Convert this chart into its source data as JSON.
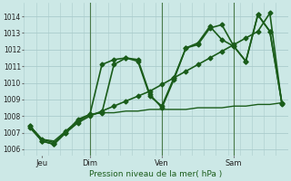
{
  "background_color": "#cce8e6",
  "grid_color": "#aacccc",
  "line_color": "#1a5c1a",
  "title": "Pression niveau de la mer( hPa )",
  "ylabel_values": [
    1006,
    1007,
    1008,
    1009,
    1010,
    1011,
    1012,
    1013,
    1014
  ],
  "ylim": [
    1005.6,
    1014.8
  ],
  "xlim": [
    -0.5,
    21.5
  ],
  "xtick_positions": [
    1,
    5,
    11,
    17
  ],
  "xtick_labels": [
    "Jeu",
    "Dim",
    "Ven",
    "Sam"
  ],
  "vlines": [
    5,
    11,
    17
  ],
  "series": [
    {
      "x": [
        0,
        1,
        2,
        3,
        4,
        5,
        6,
        7,
        8,
        9,
        10,
        11,
        12,
        13,
        14,
        15,
        16,
        17,
        18,
        19,
        20,
        21
      ],
      "y": [
        1007.4,
        1006.6,
        1006.4,
        1007.0,
        1007.6,
        1008.0,
        1008.3,
        1008.6,
        1008.9,
        1009.2,
        1009.5,
        1009.9,
        1010.3,
        1010.7,
        1011.1,
        1011.5,
        1011.9,
        1012.3,
        1012.7,
        1013.1,
        1014.2,
        1008.7
      ],
      "marker": "D",
      "markersize": 2.5,
      "linewidth": 1.2
    },
    {
      "x": [
        0,
        1,
        2,
        3,
        4,
        5,
        6,
        7,
        8,
        9,
        10,
        11,
        12,
        13,
        14,
        15,
        16,
        17,
        18,
        19,
        20,
        21
      ],
      "y": [
        1007.3,
        1006.5,
        1006.3,
        1007.1,
        1007.7,
        1008.1,
        1011.1,
        1011.4,
        1011.5,
        1011.3,
        1009.2,
        1008.6,
        1010.3,
        1012.1,
        1012.4,
        1013.4,
        1012.6,
        1012.2,
        1011.3,
        1014.1,
        1013.1,
        1008.8
      ],
      "marker": "D",
      "markersize": 2.5,
      "linewidth": 1.2
    },
    {
      "x": [
        0,
        1,
        2,
        3,
        4,
        5,
        6,
        7,
        8,
        9,
        10,
        11,
        12,
        13,
        14,
        15,
        16,
        17,
        18,
        19,
        20,
        21
      ],
      "y": [
        1007.4,
        1006.5,
        1006.3,
        1007.0,
        1007.8,
        1008.1,
        1008.2,
        1011.1,
        1011.5,
        1011.4,
        1009.3,
        1008.5,
        1010.2,
        1012.1,
        1012.3,
        1013.3,
        1013.5,
        1012.2,
        1011.3,
        1014.1,
        1013.1,
        1008.8
      ],
      "marker": "D",
      "markersize": 2.5,
      "linewidth": 1.2
    },
    {
      "x": [
        0,
        1,
        2,
        3,
        4,
        5,
        6,
        7,
        8,
        9,
        10,
        11,
        12,
        13,
        14,
        15,
        16,
        17,
        18,
        19,
        20,
        21
      ],
      "y": [
        1007.4,
        1006.6,
        1006.5,
        1007.1,
        1007.7,
        1008.1,
        1008.2,
        1008.2,
        1008.3,
        1008.3,
        1008.4,
        1008.4,
        1008.4,
        1008.4,
        1008.5,
        1008.5,
        1008.5,
        1008.6,
        1008.6,
        1008.7,
        1008.7,
        1008.8
      ],
      "marker": null,
      "markersize": 0,
      "linewidth": 1.0
    }
  ]
}
